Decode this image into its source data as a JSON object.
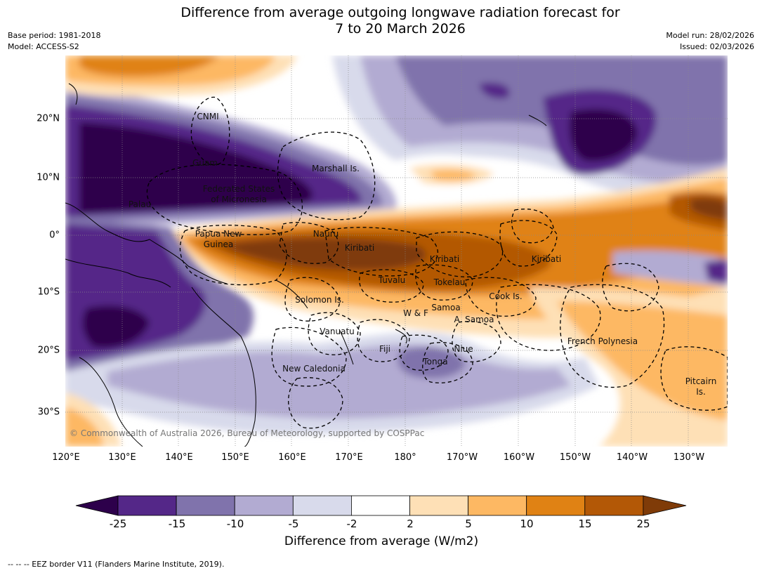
{
  "header": {
    "title_line1": "Difference from average outgoing longwave radiation forecast for",
    "title_line2": "7 to 20 March 2026",
    "base_period": "Base period: 1981-2018",
    "model": "Model: ACCESS-S2",
    "model_run": "Model run: 28/02/2026",
    "issued": "Issued: 02/03/2026"
  },
  "map": {
    "lon_labels": [
      "120°E",
      "130°E",
      "140°E",
      "150°E",
      "160°E",
      "170°E",
      "180°",
      "170°W",
      "160°W",
      "150°W",
      "140°W",
      "130°W"
    ],
    "lat_labels": [
      "20°N",
      "10°N",
      "0°",
      "10°S",
      "20°S",
      "30°S"
    ],
    "places": [
      {
        "name": "CNMI"
      },
      {
        "name": "Guam"
      },
      {
        "name": "Marshall Is."
      },
      {
        "name": "Federated States"
      },
      {
        "name": "of Micronesia"
      },
      {
        "name": "Palau"
      },
      {
        "name": "Papua New"
      },
      {
        "name": "Guinea"
      },
      {
        "name": "Nauru"
      },
      {
        "name": "Kiribati"
      },
      {
        "name": "Kiribati"
      },
      {
        "name": "Kiribati"
      },
      {
        "name": "Tuvalu"
      },
      {
        "name": "Tokelau"
      },
      {
        "name": "Solomon Is."
      },
      {
        "name": "Cook Is."
      },
      {
        "name": "Samoa"
      },
      {
        "name": "W & F"
      },
      {
        "name": "A. Samoa"
      },
      {
        "name": "Vanuatu"
      },
      {
        "name": "Fiji"
      },
      {
        "name": "Niue"
      },
      {
        "name": "French Polynesia"
      },
      {
        "name": "Tonga"
      },
      {
        "name": "New Caledonia"
      },
      {
        "name": "Pitcairn"
      },
      {
        "name": "Is."
      }
    ],
    "copyright": "© Commonwealth of Australia 2026, Bureau of Meteorology, supported by COSPPac"
  },
  "colorbar": {
    "ticks": [
      "-25",
      "-15",
      "-10",
      "-5",
      "-2",
      "2",
      "5",
      "10",
      "15",
      "25"
    ],
    "colors": [
      "#2d004b",
      "#542788",
      "#8073ac",
      "#b2abd2",
      "#d8daeb",
      "#ffffff",
      "#fee0b6",
      "#fdb863",
      "#e08214",
      "#b35806",
      "#7f3b08"
    ],
    "title": "Difference from average (W/m2)"
  },
  "footer": {
    "legend": "--  --  -- EEZ border V11 (Flanders Marine Institute, 2019)."
  }
}
